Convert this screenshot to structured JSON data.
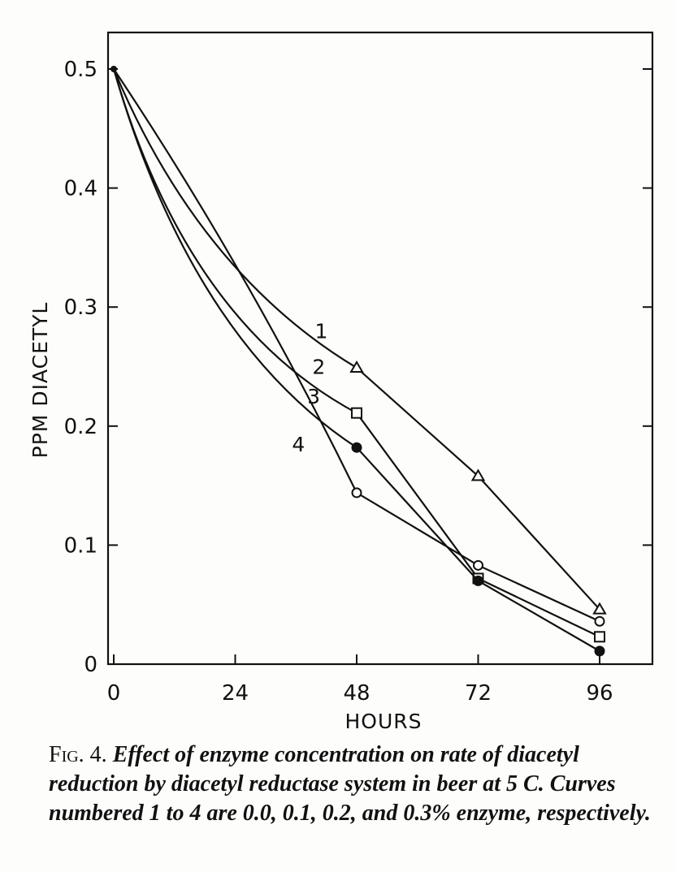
{
  "chart_data": {
    "type": "line",
    "xlabel": "HOURS",
    "ylabel": "PPM DIACETYL",
    "xlim": [
      0,
      102
    ],
    "ylim": [
      0,
      0.53
    ],
    "x_ticks": [
      0,
      24,
      48,
      72,
      96
    ],
    "x_tick_labels": [
      "0",
      "24",
      "48",
      "72",
      "96"
    ],
    "y_ticks": [
      0,
      0.1,
      0.2,
      0.3,
      0.4,
      0.5
    ],
    "y_tick_labels": [
      "0",
      "0.1",
      "0.2",
      "0.3",
      "0.4",
      "0.5"
    ],
    "grid": false,
    "series": [
      {
        "name": "1",
        "marker": "triangle",
        "x": [
          0,
          48,
          72,
          96
        ],
        "y": [
          0.5,
          0.249,
          0.158,
          0.046
        ]
      },
      {
        "name": "2",
        "marker": "square",
        "x": [
          0,
          48,
          72,
          96
        ],
        "y": [
          0.5,
          0.211,
          0.072,
          0.023
        ]
      },
      {
        "name": "3",
        "marker": "filled-circle",
        "x": [
          0,
          48,
          72,
          96
        ],
        "y": [
          0.5,
          0.182,
          0.07,
          0.011
        ]
      },
      {
        "name": "4",
        "marker": "open-circle",
        "x": [
          0,
          48,
          72,
          96
        ],
        "y": [
          0.5,
          0.144,
          0.083,
          0.036
        ]
      }
    ],
    "curve_labels": [
      {
        "text": "1",
        "x": 41,
        "y": 0.28
      },
      {
        "text": "2",
        "x": 40.5,
        "y": 0.25
      },
      {
        "text": "3",
        "x": 39.5,
        "y": 0.225
      },
      {
        "text": "4",
        "x": 36.5,
        "y": 0.185
      }
    ]
  },
  "caption": {
    "fig": "Fig. 4.",
    "text": "Effect of enzyme concentration on rate of diacetyl reduction by diacetyl reductase system in beer at 5 C. Curves numbered 1 to 4 are 0.0, 0.1, 0.2, and 0.3% enzyme, respectively."
  }
}
